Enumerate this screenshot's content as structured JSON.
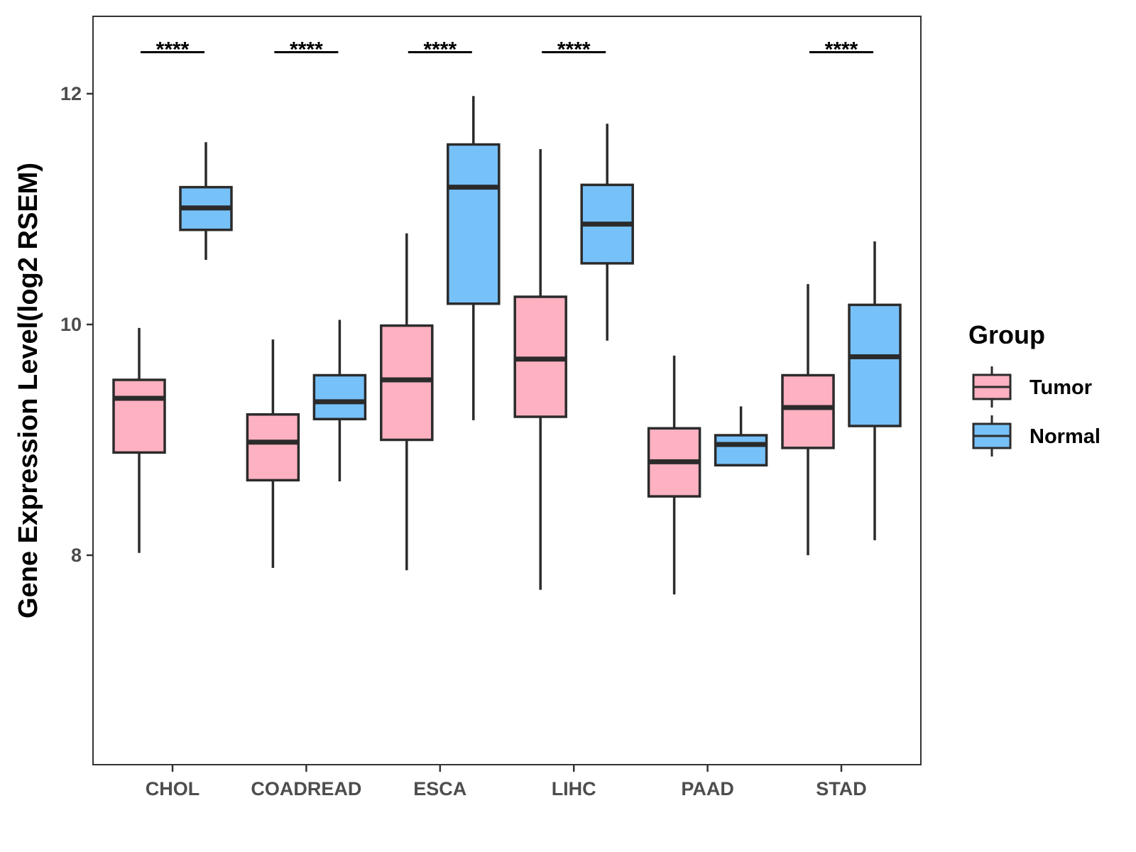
{
  "chart_data": {
    "type": "boxplot",
    "title": "",
    "xlabel": "",
    "ylabel": "Gene Expression Level(log2 RSEM)",
    "ylim": [
      6.2,
      12.7
    ],
    "yticks": [
      8,
      10,
      12
    ],
    "categories": [
      "CHOL",
      "COADREAD",
      "ESCA",
      "LIHC",
      "PAAD",
      "STAD"
    ],
    "legend": {
      "title": "Group",
      "position": "right"
    },
    "series": [
      {
        "name": "Tumor",
        "color": "#fdb1c1",
        "boxes": [
          {
            "min": 8.02,
            "q1": 8.89,
            "median": 9.36,
            "q3": 9.52,
            "max": 9.97
          },
          {
            "min": 7.89,
            "q1": 8.65,
            "median": 8.98,
            "q3": 9.22,
            "max": 9.87
          },
          {
            "min": 7.87,
            "q1": 9.0,
            "median": 9.52,
            "q3": 9.99,
            "max": 10.79
          },
          {
            "min": 7.7,
            "q1": 9.2,
            "median": 9.7,
            "q3": 10.24,
            "max": 11.52
          },
          {
            "min": 7.66,
            "q1": 8.51,
            "median": 8.81,
            "q3": 9.1,
            "max": 9.73
          },
          {
            "min": 8.0,
            "q1": 8.93,
            "median": 9.28,
            "q3": 9.56,
            "max": 10.35
          }
        ]
      },
      {
        "name": "Normal",
        "color": "#77c1f9",
        "boxes": [
          {
            "min": 10.56,
            "q1": 10.82,
            "median": 11.01,
            "q3": 11.19,
            "max": 11.58
          },
          {
            "min": 8.64,
            "q1": 9.18,
            "median": 9.33,
            "q3": 9.56,
            "max": 10.04
          },
          {
            "min": 9.17,
            "q1": 10.18,
            "median": 11.19,
            "q3": 11.56,
            "max": 11.98
          },
          {
            "min": 9.86,
            "q1": 10.53,
            "median": 10.87,
            "q3": 11.21,
            "max": 11.74
          },
          {
            "min": 8.77,
            "q1": 8.78,
            "median": 8.96,
            "q3": 9.04,
            "max": 9.29
          },
          {
            "min": 8.13,
            "q1": 9.12,
            "median": 9.72,
            "q3": 10.17,
            "max": 10.72
          }
        ]
      }
    ],
    "significance": [
      {
        "category": "CHOL",
        "label": "****"
      },
      {
        "category": "COADREAD",
        "label": "****"
      },
      {
        "category": "ESCA",
        "label": "****"
      },
      {
        "category": "LIHC",
        "label": "****"
      },
      {
        "category": "PAAD",
        "label": ""
      },
      {
        "category": "STAD",
        "label": "****"
      }
    ],
    "sig_line_value": 12.36,
    "grid": false
  }
}
